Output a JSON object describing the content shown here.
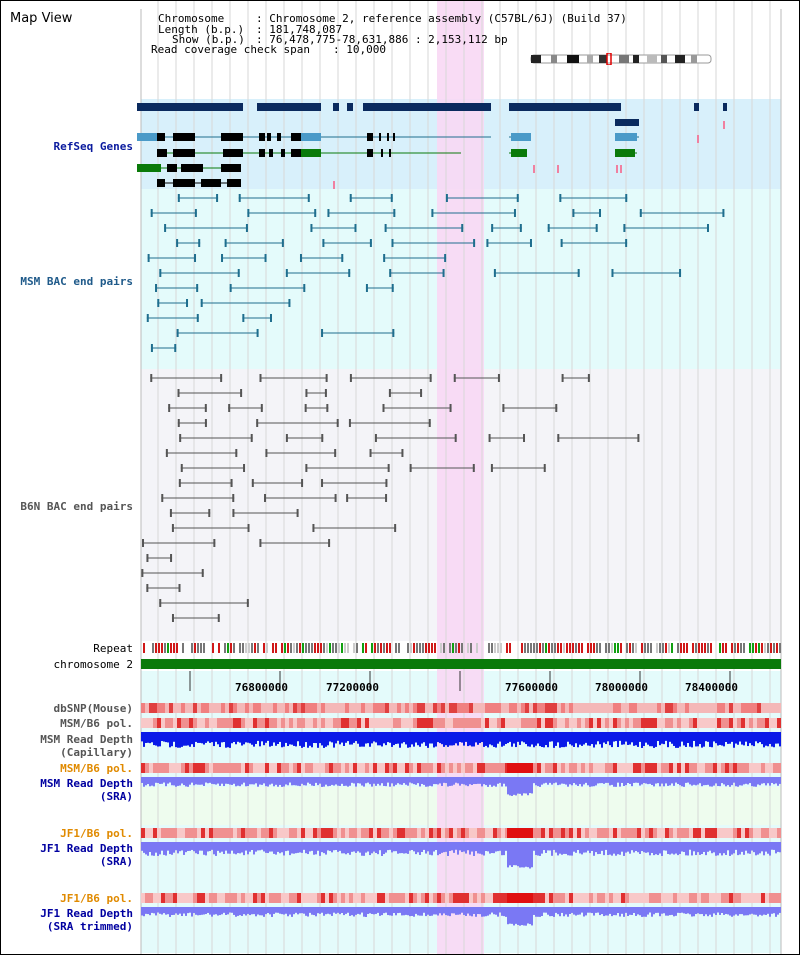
{
  "header": {
    "title": "Map View",
    "chromosome_key": "Chromosome",
    "chromosome_val": ": Chromosome 2, reference assembly (C57BL/6J) (Build 37)",
    "length_key": "Length (b.p.)",
    "length_val": ": 181,748,087",
    "show_key": "Show (b.p.)",
    "show_val": ": 76,478,775-78,631,886 : 2,153,112 bp",
    "span_key": "Read coverage check span",
    "span_val": ": 10,000"
  },
  "tracks": {
    "refseq": "RefSeq Genes",
    "msm_bac": "MSM BAC end pairs",
    "b6n_bac": "B6N BAC end pairs",
    "repeat": "Repeat",
    "chromosome": "chromosome 2",
    "dbsnp": "dbSNP(Mouse)",
    "msm_pol1": "MSM/B6 pol.",
    "msm_depth_cap_1": "MSM Read Depth",
    "msm_depth_cap_2": "(Capillary)",
    "msm_pol2": "MSM/B6 pol.",
    "msm_depth_sra_1": "MSM Read Depth",
    "msm_depth_sra_2": "(SRA)",
    "jf1_pol1": "JF1/B6 pol.",
    "jf1_depth_1": "JF1 Read Depth",
    "jf1_depth_2": "(SRA)",
    "jf1_pol2": "JF1/B6 pol.",
    "jf1_trim_1": "JF1 Read Depth",
    "jf1_trim_2": "(SRA trimmed)"
  },
  "axis": {
    "ticks": [
      "76800000",
      "77200000",
      "77600000",
      "78000000",
      "78400000"
    ]
  },
  "colors": {
    "refseq_bg": "#d8f0fb",
    "msm_bg": "#e4fbfb",
    "b6n_bg": "#f4f4f8",
    "highlight": "#f8d8f4",
    "navy": "#0a2a5e",
    "teal": "#1f6e8e",
    "grey": "#555555",
    "chrom_green": "#0a7a0a",
    "depth_blue": "#0a1ae8",
    "depth_lilac": "#7a78f4"
  }
}
